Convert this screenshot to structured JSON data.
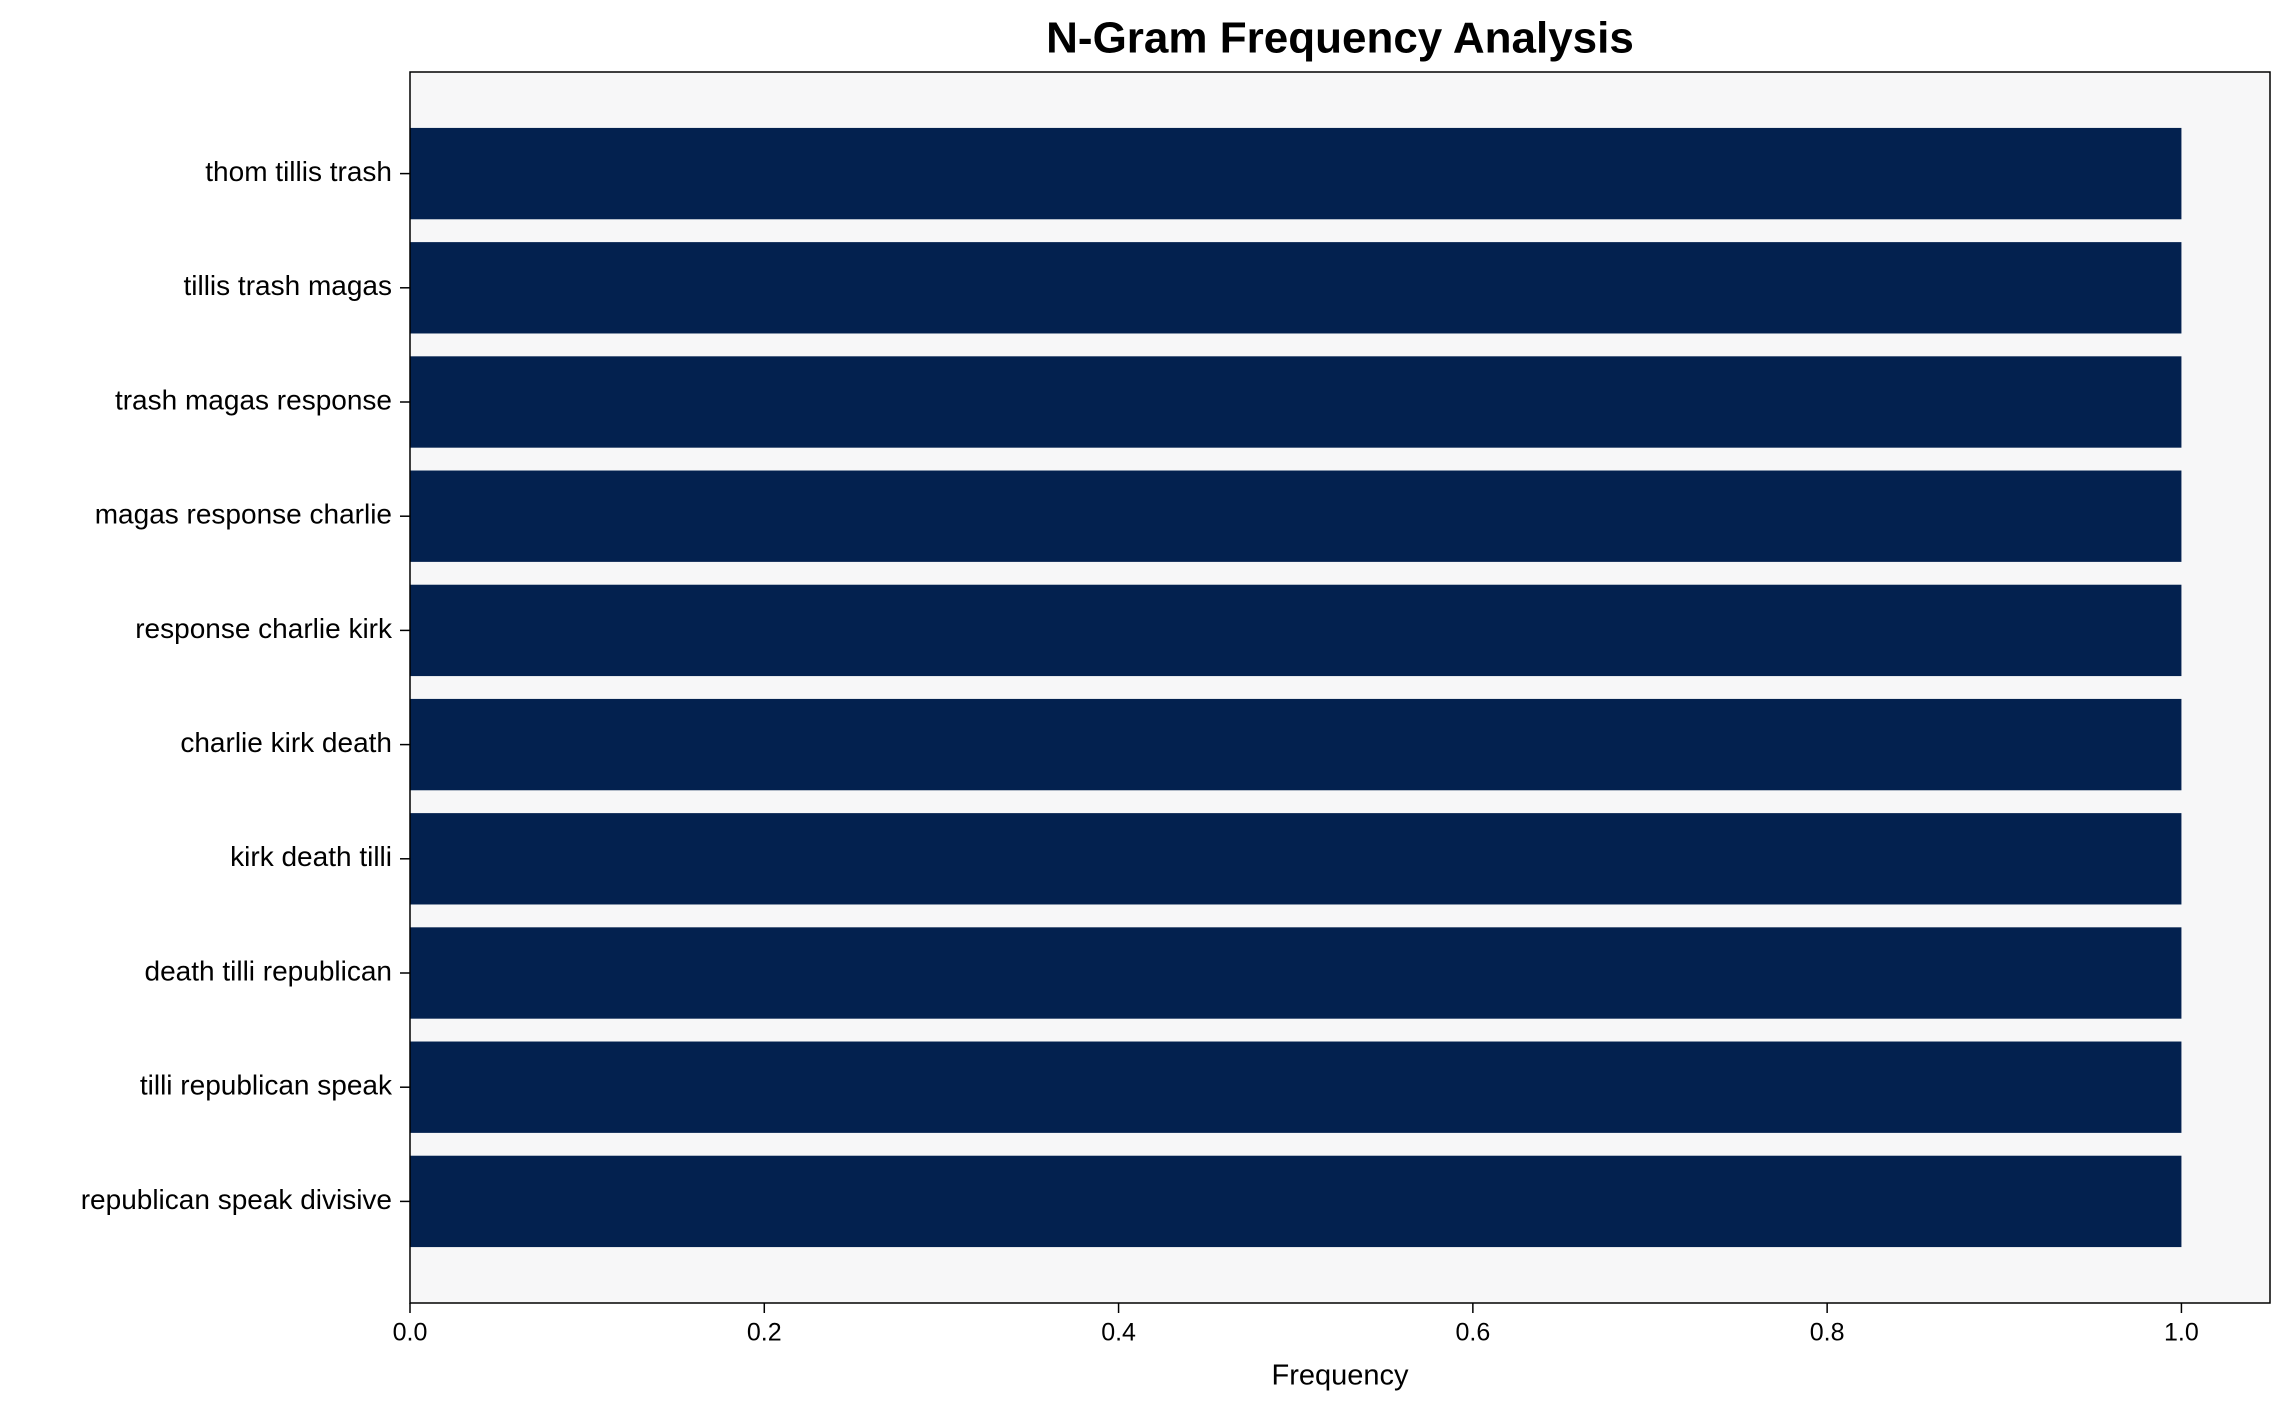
{
  "chart_data": {
    "type": "barh",
    "title": "N-Gram Frequency Analysis",
    "xlabel": "Frequency",
    "categories": [
      "thom tillis trash",
      "tillis trash magas",
      "trash magas response",
      "magas response charlie",
      "response charlie kirk",
      "charlie kirk death",
      "kirk death tilli",
      "death tilli republican",
      "tilli republican speak",
      "republican speak divisive"
    ],
    "values": [
      1,
      1,
      1,
      1,
      1,
      1,
      1,
      1,
      1,
      1
    ],
    "color": "#03214f",
    "xlim": [
      0,
      1.05
    ],
    "xticks": [
      {
        "value": 0,
        "label": "0.0"
      },
      0.2,
      0.4,
      0.6,
      0.8,
      {
        "value": 1,
        "label": "1.0"
      }
    ]
  }
}
